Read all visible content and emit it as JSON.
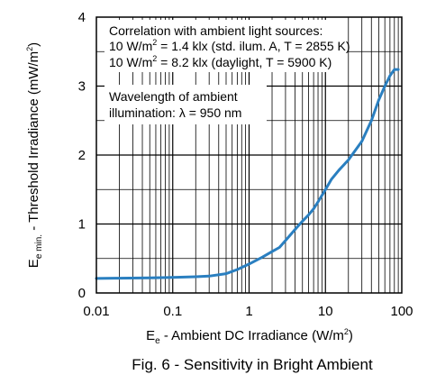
{
  "chart_data": {
    "type": "line",
    "x_scale": "log",
    "xlim": [
      0.01,
      100
    ],
    "ylim": [
      0,
      4
    ],
    "grid": true,
    "x_ticks": [
      "0.01",
      "0.1",
      "1",
      "10",
      "100"
    ],
    "y_ticks": [
      "0",
      "1",
      "2",
      "3",
      "4"
    ],
    "xlabel": {
      "main": "E",
      "sub": "e",
      "rest": " - Ambient DC Irradiance (W/m",
      "sup": "2",
      "end": ")"
    },
    "ylabel": {
      "main": "E",
      "sub": "e min.",
      "rest": " - Threshold Irradiance (mW/m",
      "sup": "2",
      "end": ")"
    },
    "annotations": {
      "correlation_title": "Correlation with ambient light sources:",
      "line1_pre": "10 W/m",
      "line1_sup": "2",
      "line1_post": " = 1.4 klx (std. ilum. A, T = 2855 K)",
      "line2_pre": "10 W/m",
      "line2_sup": "2",
      "line2_post": " = 8.2 klx (daylight, T = 5900 K)",
      "wavelength_line1": "Wavelength of ambient",
      "wavelength_line2": "illumination: λ = 950 nm"
    },
    "series": [
      {
        "color": "#2a7fc0",
        "x": [
          0.01,
          0.02,
          0.05,
          0.1,
          0.2,
          0.3,
          0.5,
          0.7,
          1,
          1.5,
          2,
          2.5,
          3,
          4,
          5,
          6,
          7,
          8,
          10,
          12,
          15,
          20,
          30,
          40,
          50,
          60,
          70,
          80,
          90
        ],
        "y": [
          0.21,
          0.215,
          0.22,
          0.225,
          0.235,
          0.245,
          0.28,
          0.34,
          0.42,
          0.52,
          0.6,
          0.66,
          0.76,
          0.92,
          1.04,
          1.13,
          1.22,
          1.32,
          1.5,
          1.65,
          1.78,
          1.93,
          2.2,
          2.5,
          2.8,
          3.0,
          3.15,
          3.24,
          3.24
        ]
      }
    ],
    "caption": "Fig. 6 - Sensitivity in Bright Ambient"
  }
}
